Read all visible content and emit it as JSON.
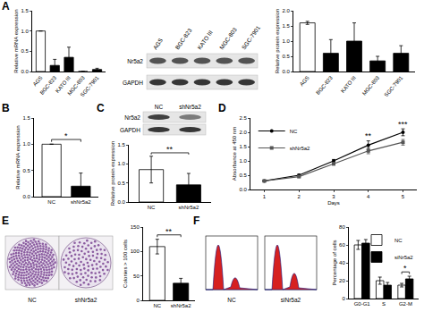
{
  "chart_data": [
    {
      "type": "bar",
      "categories": [
        "AGS",
        "BGC-823",
        "KATO III",
        "MGC-803",
        "SGC-7901"
      ],
      "values": [
        1.0,
        0.15,
        0.35,
        0.0,
        0.05
      ],
      "errors": [
        0.0,
        0.15,
        0.25,
        0.0,
        0.03
      ],
      "colors": [
        "#ffffff",
        "#000000",
        "#000000",
        "#000000",
        "#000000"
      ],
      "y_label": "Relative mRNA expression",
      "ylim": [
        0,
        1.5
      ],
      "yticks": [
        {
          "value": 0,
          "label": "0.0"
        },
        0.5,
        {
          "value": 1,
          "label": "1.0"
        },
        1.5
      ],
      "grid": false
    },
    {
      "type": "bar",
      "categories": [
        "AGS",
        "BGC-823",
        "KATO III",
        "MGC-803",
        "SGC-7901"
      ],
      "values": [
        1.6,
        0.6,
        1.0,
        0.35,
        0.6
      ],
      "errors": [
        0.05,
        0.45,
        0.6,
        0.15,
        0.25
      ],
      "colors": [
        "#ffffff",
        "#000000",
        "#000000",
        "#000000",
        "#000000"
      ],
      "y_label": "Relative protein expression",
      "ylim": [
        0,
        2
      ],
      "yticks": [
        {
          "value": 0,
          "label": "0.0"
        },
        0.5,
        {
          "value": 1,
          "label": "1.0"
        },
        1.5,
        {
          "value": 2,
          "label": "2.0"
        }
      ],
      "grid": false
    },
    {
      "type": "bar",
      "categories": [
        "NC",
        "shNr5a2"
      ],
      "values": [
        1.0,
        0.2
      ],
      "errors": [
        0.0,
        0.25
      ],
      "colors": [
        "#ffffff",
        "#000000"
      ],
      "y_label": "Relative mRNA expression",
      "ylim": [
        0,
        1.5
      ],
      "yticks": [
        {
          "value": 0,
          "label": "0.0"
        },
        0.5,
        {
          "value": 1,
          "label": "1.0"
        },
        1.5
      ],
      "grid": false,
      "annotations": [
        {
          "text": "*",
          "x": [
            "NC",
            "shNr5a2"
          ]
        }
      ]
    },
    {
      "type": "bar",
      "categories": [
        "NC",
        "shNr5a2"
      ],
      "values": [
        0.85,
        0.45
      ],
      "errors": [
        0.35,
        0.3
      ],
      "colors": [
        "#ffffff",
        "#000000"
      ],
      "y_label": "Relative protein expression",
      "ylim": [
        0,
        1.5
      ],
      "yticks": [
        {
          "value": 0,
          "label": "0.0"
        },
        0.5,
        {
          "value": 1,
          "label": "1.0"
        },
        1.5
      ],
      "grid": false,
      "annotations": [
        {
          "text": "**",
          "x": [
            "NC",
            "shNr5a2"
          ]
        }
      ]
    },
    {
      "type": "line",
      "x": [
        1,
        2,
        3,
        4,
        5
      ],
      "x_label": "Days",
      "y_label": "Absorbance at 450 nm",
      "xlim": [
        0.6,
        5.4
      ],
      "xticks": [
        1,
        2,
        3,
        4,
        5
      ],
      "ylim": [
        0,
        2.5
      ],
      "yticks": [
        {
          "value": 0,
          "label": "0.0"
        },
        0.5,
        {
          "value": 1,
          "label": "1.0"
        },
        1.5,
        {
          "value": 2,
          "label": "2.0"
        },
        2.5
      ],
      "grid": false,
      "legend": "upper left",
      "series": [
        {
          "name": "NC",
          "color": "#000000",
          "marker": "circle",
          "line_style": "solid",
          "values": [
            0.3,
            0.5,
            1.0,
            1.55,
            2.0
          ],
          "errors": [
            0.02,
            0.03,
            0.05,
            0.15,
            0.12
          ]
        },
        {
          "name": "shNr5a2",
          "color": "#555555",
          "marker": "square",
          "line_style": "solid",
          "values": [
            0.3,
            0.45,
            0.9,
            1.35,
            1.65
          ],
          "errors": [
            0.02,
            0.03,
            0.05,
            0.1,
            0.1
          ]
        }
      ],
      "annotations": [
        {
          "text": "**",
          "x": 4
        },
        {
          "text": "***",
          "x": 5
        }
      ]
    },
    {
      "type": "bar",
      "categories": [
        "NC",
        "shNr5a2"
      ],
      "values": [
        110,
        35
      ],
      "errors": [
        15,
        10
      ],
      "colors": [
        "#ffffff",
        "#000000"
      ],
      "y_label": "Colonies > 100 cells",
      "ylim": [
        0,
        150
      ],
      "yticks": [
        0,
        50,
        100,
        150
      ],
      "grid": false,
      "annotations": [
        {
          "text": "**",
          "x": [
            "NC",
            "shNr5a2"
          ]
        }
      ]
    },
    {
      "type": "bar",
      "categories": [
        "G0-G1",
        "S",
        "G2-M"
      ],
      "y_label": "Percentage of cells",
      "ylim": [
        0,
        80
      ],
      "yticks": [
        0,
        20,
        40,
        60,
        80
      ],
      "grid": false,
      "legend": "upper right",
      "series": [
        {
          "name": "NC",
          "color": "#ffffff",
          "values": [
            60,
            20,
            15
          ],
          "errors": [
            5,
            4,
            2
          ]
        },
        {
          "name": "siNr5a2",
          "color": "#000000",
          "values": [
            62,
            15,
            22
          ],
          "errors": [
            4,
            3,
            3
          ]
        }
      ],
      "annotations": [
        {
          "text": "*",
          "x": [
            "G2-M"
          ]
        }
      ]
    }
  ],
  "panel_labels": [
    "A",
    "B",
    "C",
    "D",
    "E",
    "F"
  ],
  "blots": [
    {
      "lanes": [
        "AGS",
        "BGC-823",
        "KATO III",
        "MGC-803",
        "SGC-7901"
      ],
      "rows": [
        "Nr5a2",
        "GAPDH"
      ]
    },
    {
      "lanes": [
        "NC",
        "shNr5a2"
      ],
      "rows": [
        "Nr5a2",
        "GAPDH"
      ]
    }
  ],
  "colony_images": [
    "NC",
    "shNr5a2"
  ],
  "flow_images": [
    "NC",
    "siNr5a2"
  ]
}
